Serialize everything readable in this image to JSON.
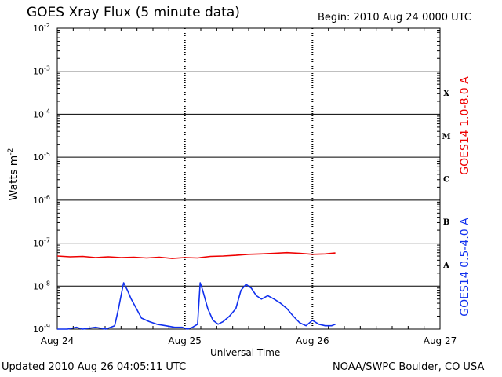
{
  "header": {
    "title": "GOES Xray Flux (5 minute data)",
    "begin": "Begin:  2010 Aug 24 0000 UTC"
  },
  "footer": {
    "updated": "Updated 2010 Aug 26 04:05:11 UTC",
    "credit": "NOAA/SWPC Boulder, CO USA"
  },
  "colors": {
    "long_channel": "#ee0000",
    "short_channel": "#1030ee",
    "axis": "#000000",
    "background": "#ffffff"
  },
  "chart_data": {
    "type": "line",
    "title": "GOES Xray Flux (5 minute data)",
    "xlabel": "Universal Time",
    "ylabel": "Watts m",
    "ylabel_superscript": "-2",
    "yscale": "log",
    "ylim": [
      1e-09,
      0.01
    ],
    "y_ticks": [
      {
        "value": 1e-09,
        "base": "10",
        "exp": "-9"
      },
      {
        "value": 1e-08,
        "base": "10",
        "exp": "-8"
      },
      {
        "value": 1e-07,
        "base": "10",
        "exp": "-7"
      },
      {
        "value": 1e-06,
        "base": "10",
        "exp": "-6"
      },
      {
        "value": 1e-05,
        "base": "10",
        "exp": "-5"
      },
      {
        "value": 0.0001,
        "base": "10",
        "exp": "-4"
      },
      {
        "value": 0.001,
        "base": "10",
        "exp": "-3"
      },
      {
        "value": 0.01,
        "base": "10",
        "exp": "-2"
      }
    ],
    "xlim_days": [
      0,
      3
    ],
    "x_ticks": [
      {
        "day": 0,
        "label": "Aug 24"
      },
      {
        "day": 1,
        "label": "Aug 25"
      },
      {
        "day": 2,
        "label": "Aug 26"
      },
      {
        "day": 3,
        "label": "Aug 27"
      }
    ],
    "flare_classes": [
      {
        "label": "X",
        "low": 0.0001,
        "high": 0.001
      },
      {
        "label": "M",
        "low": 1e-05,
        "high": 0.0001
      },
      {
        "label": "C",
        "low": 1e-06,
        "high": 1e-05
      },
      {
        "label": "B",
        "low": 1e-07,
        "high": 1e-06
      },
      {
        "label": "A",
        "low": 1e-08,
        "high": 1e-07
      }
    ],
    "grid": "horizontal lines at each decade; dashed vertical lines at day boundaries",
    "series": [
      {
        "name": "GOES14 1.0-8.0 A",
        "color": "#ee0000",
        "points": [
          [
            0.0,
            5e-08
          ],
          [
            0.1,
            4.8e-08
          ],
          [
            0.2,
            4.9e-08
          ],
          [
            0.3,
            4.6e-08
          ],
          [
            0.4,
            4.8e-08
          ],
          [
            0.5,
            4.6e-08
          ],
          [
            0.6,
            4.7e-08
          ],
          [
            0.7,
            4.5e-08
          ],
          [
            0.8,
            4.7e-08
          ],
          [
            0.9,
            4.4e-08
          ],
          [
            1.0,
            4.6e-08
          ],
          [
            1.1,
            4.5e-08
          ],
          [
            1.2,
            4.9e-08
          ],
          [
            1.3,
            5e-08
          ],
          [
            1.4,
            5.2e-08
          ],
          [
            1.5,
            5.5e-08
          ],
          [
            1.6,
            5.6e-08
          ],
          [
            1.7,
            5.8e-08
          ],
          [
            1.8,
            6e-08
          ],
          [
            1.9,
            5.8e-08
          ],
          [
            2.0,
            5.5e-08
          ],
          [
            2.1,
            5.6e-08
          ],
          [
            2.18,
            5.9e-08
          ]
        ]
      },
      {
        "name": "GOES14 0.5-4.0 A",
        "color": "#1030ee",
        "points": [
          [
            0.0,
            1e-09
          ],
          [
            0.08,
            1e-09
          ],
          [
            0.15,
            1.1e-09
          ],
          [
            0.2,
            1e-09
          ],
          [
            0.3,
            1.1e-09
          ],
          [
            0.38,
            1e-09
          ],
          [
            0.45,
            1.2e-09
          ],
          [
            0.48,
            3e-09
          ],
          [
            0.5,
            6e-09
          ],
          [
            0.52,
            1.2e-08
          ],
          [
            0.55,
            8e-09
          ],
          [
            0.58,
            5e-09
          ],
          [
            0.62,
            3e-09
          ],
          [
            0.66,
            1.8e-09
          ],
          [
            0.72,
            1.5e-09
          ],
          [
            0.78,
            1.3e-09
          ],
          [
            0.85,
            1.2e-09
          ],
          [
            0.92,
            1.1e-09
          ],
          [
            0.98,
            1.1e-09
          ],
          [
            1.02,
            1e-09
          ],
          [
            1.06,
            1.1e-09
          ],
          [
            1.1,
            1.3e-09
          ],
          [
            1.12,
            1.2e-08
          ],
          [
            1.14,
            8e-09
          ],
          [
            1.18,
            3e-09
          ],
          [
            1.22,
            1.6e-09
          ],
          [
            1.26,
            1.3e-09
          ],
          [
            1.3,
            1.5e-09
          ],
          [
            1.35,
            2e-09
          ],
          [
            1.4,
            3e-09
          ],
          [
            1.44,
            8e-09
          ],
          [
            1.48,
            1.1e-08
          ],
          [
            1.52,
            9e-09
          ],
          [
            1.56,
            6e-09
          ],
          [
            1.6,
            5e-09
          ],
          [
            1.65,
            6e-09
          ],
          [
            1.7,
            5e-09
          ],
          [
            1.75,
            4e-09
          ],
          [
            1.8,
            3e-09
          ],
          [
            1.85,
            2e-09
          ],
          [
            1.9,
            1.4e-09
          ],
          [
            1.95,
            1.2e-09
          ],
          [
            2.0,
            1.6e-09
          ],
          [
            2.05,
            1.3e-09
          ],
          [
            2.1,
            1.2e-09
          ],
          [
            2.15,
            1.2e-09
          ],
          [
            2.18,
            1.3e-09
          ]
        ]
      }
    ]
  }
}
